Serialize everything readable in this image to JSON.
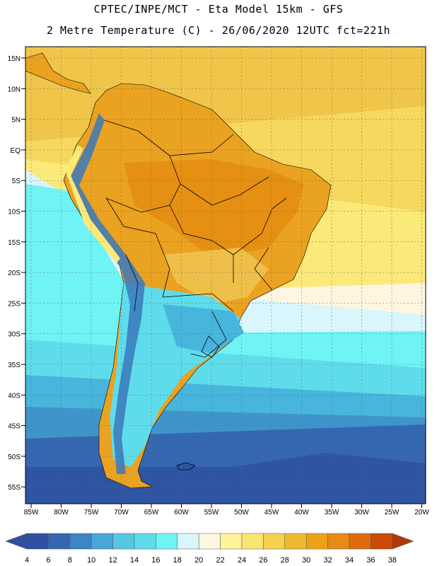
{
  "header": {
    "line1": "CPTEC/INPE/MCT -  Eta Model 15km - GFS",
    "line2": "2 Metre Temperature (C) - 26/06/2020 12UTC fct=221h"
  },
  "map": {
    "lat_labels": [
      "15N",
      "10N",
      "5N",
      "EQ",
      "5S",
      "10S",
      "15S",
      "20S",
      "25S",
      "30S",
      "35S",
      "40S",
      "45S",
      "50S",
      "55S"
    ],
    "lon_labels": [
      "85W",
      "80W",
      "75W",
      "70W",
      "65W",
      "60W",
      "55W",
      "50W",
      "45W",
      "40W",
      "35W",
      "30W",
      "25W",
      "20W"
    ]
  },
  "legend": {
    "colors": [
      "#2f4fa0",
      "#3567b0",
      "#3f84c4",
      "#48a7d6",
      "#57c6e2",
      "#5fdceb",
      "#6ff3f5",
      "#d8f6fb",
      "#fff6e0",
      "#fff39c",
      "#fbe571",
      "#f4d24e",
      "#eeba34",
      "#eca318",
      "#e88a16",
      "#df6a10",
      "#cc4a08",
      "#b0380a"
    ],
    "labels": [
      "4",
      "6",
      "8",
      "10",
      "12",
      "14",
      "16",
      "18",
      "20",
      "22",
      "24",
      "26",
      "28",
      "30",
      "32",
      "34",
      "36",
      "38"
    ]
  }
}
